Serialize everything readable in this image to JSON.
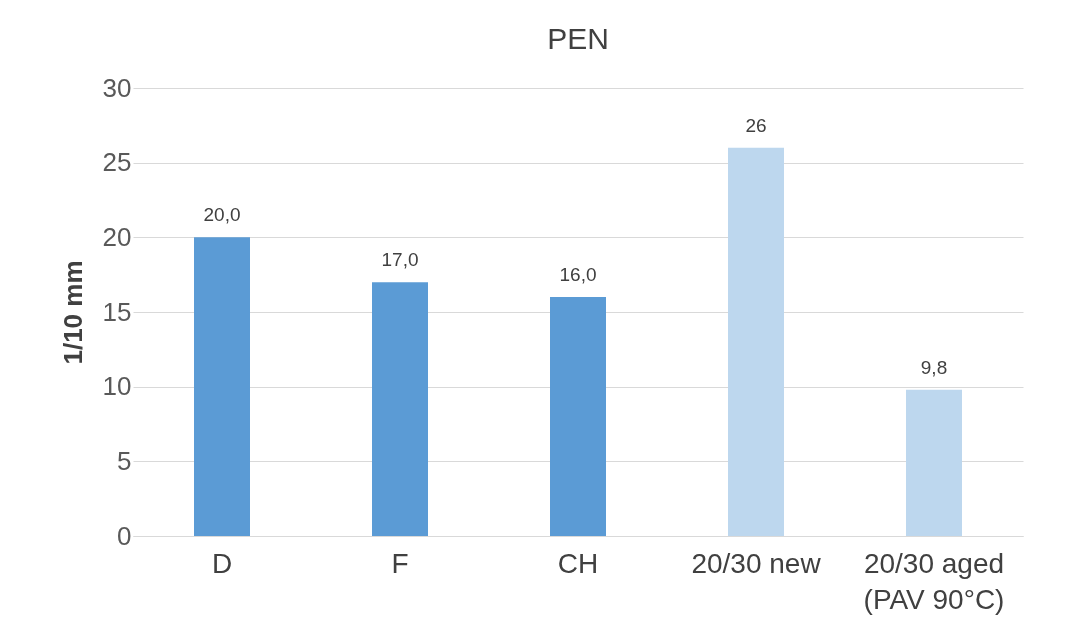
{
  "chart_data": {
    "type": "bar",
    "title": "PEN",
    "ylabel": "1/10 mm",
    "categories": [
      "D",
      "F",
      "CH",
      "20/30 new",
      "20/30 aged (PAV 90°C)"
    ],
    "values": [
      20.0,
      17.0,
      16.0,
      26,
      9.8
    ],
    "colors": [
      "#5b9bd5",
      "#5b9bd5",
      "#5b9bd5",
      "#bdd7ee",
      "#bdd7ee"
    ],
    "value_labels": [
      "20,0",
      "17,0",
      "16,0",
      "26",
      "9,8"
    ],
    "ylim": [
      0,
      30
    ],
    "yticks": [
      0,
      5,
      10,
      15,
      20,
      25,
      30
    ],
    "grid": "y"
  }
}
